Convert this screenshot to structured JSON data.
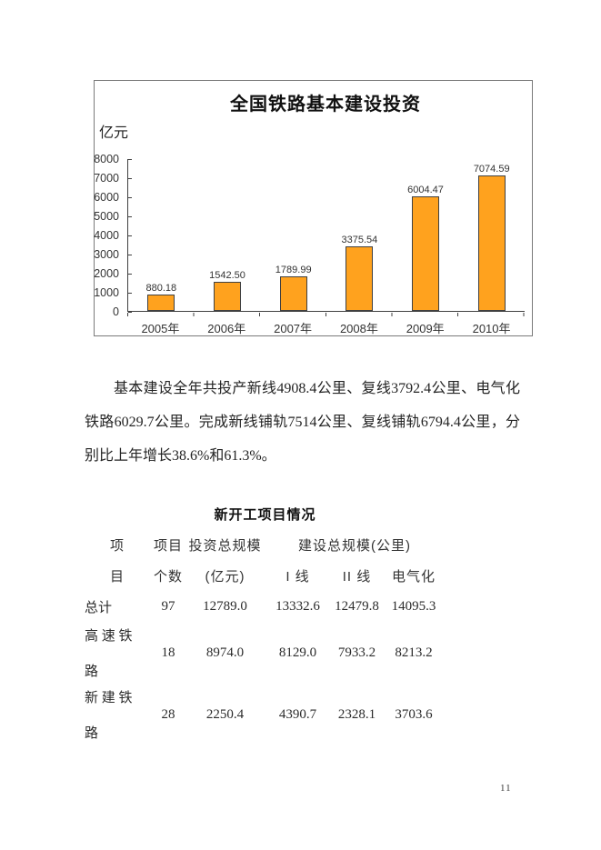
{
  "page": {
    "number": "11"
  },
  "chart": {
    "box_border_color": "#7a7a7a",
    "bar_fill": "#FFA21E",
    "bar_border": "#404040",
    "axis_color": "#404040"
  },
  "chart_data": {
    "type": "bar",
    "title": "全国铁路基本建设投资",
    "ylabel": "亿元",
    "categories": [
      "2005年",
      "2006年",
      "2007年",
      "2008年",
      "2009年",
      "2010年"
    ],
    "values": [
      880.18,
      1542.5,
      1789.99,
      3375.54,
      6004.47,
      7074.59
    ],
    "bar_labels": [
      "880.18",
      "1542.50",
      "1789.99",
      "3375.54",
      "6004.47",
      "7074.59"
    ],
    "ylim": [
      0,
      8000
    ],
    "ytick_interval": 1000,
    "yticks": [
      "8000",
      "7000",
      "6000",
      "5000",
      "4000",
      "3000",
      "2000",
      "1000",
      "0"
    ],
    "grid": "off",
    "legend": "none"
  },
  "paragraph": {
    "lines": [
      "基本建设全年共投产新线4908.4公里、复线3792.4公里、电气化",
      "铁路6029.7公里。完成新线铺轨7514公里、复线铺轨6794.4公里，分",
      "别比上年增长38.6%和61.3%。"
    ],
    "full_text": "基本建设全年共投产新线4908.4公里、复线3792.4公里、电气化铁路6029.7公里。完成新线铺轨7514公里、复线铺轨6794.4公里，分别比上年增长38.6%和61.3%。"
  },
  "table": {
    "title": "新开工项目情况",
    "header": {
      "col1_line1": "项",
      "col1_line2": "目",
      "col2_line1": "项目",
      "col2_line2": "个数",
      "col3_line1": "投资总规模",
      "col3_line2": "(亿元)",
      "group": "建设总规模(公里)",
      "col4": "I 线",
      "col5": "II 线",
      "col6": "电气化"
    },
    "rows": [
      {
        "name": "总计",
        "name_lines": [
          "总计"
        ],
        "count": "97",
        "investment": "12789.0",
        "line_i": "13332.6",
        "line_ii": "12479.8",
        "electrified": "14095.3"
      },
      {
        "name": "高速铁路",
        "name_lines": [
          "高 速 铁",
          "路"
        ],
        "count": "18",
        "investment": "8974.0",
        "line_i": "8129.0",
        "line_ii": "7933.2",
        "electrified": "8213.2"
      },
      {
        "name": "新建铁路",
        "name_lines": [
          "新 建 铁",
          "路"
        ],
        "count": "28",
        "investment": "2250.4",
        "line_i": "4390.7",
        "line_ii": "2328.1",
        "electrified": "3703.6"
      }
    ]
  }
}
